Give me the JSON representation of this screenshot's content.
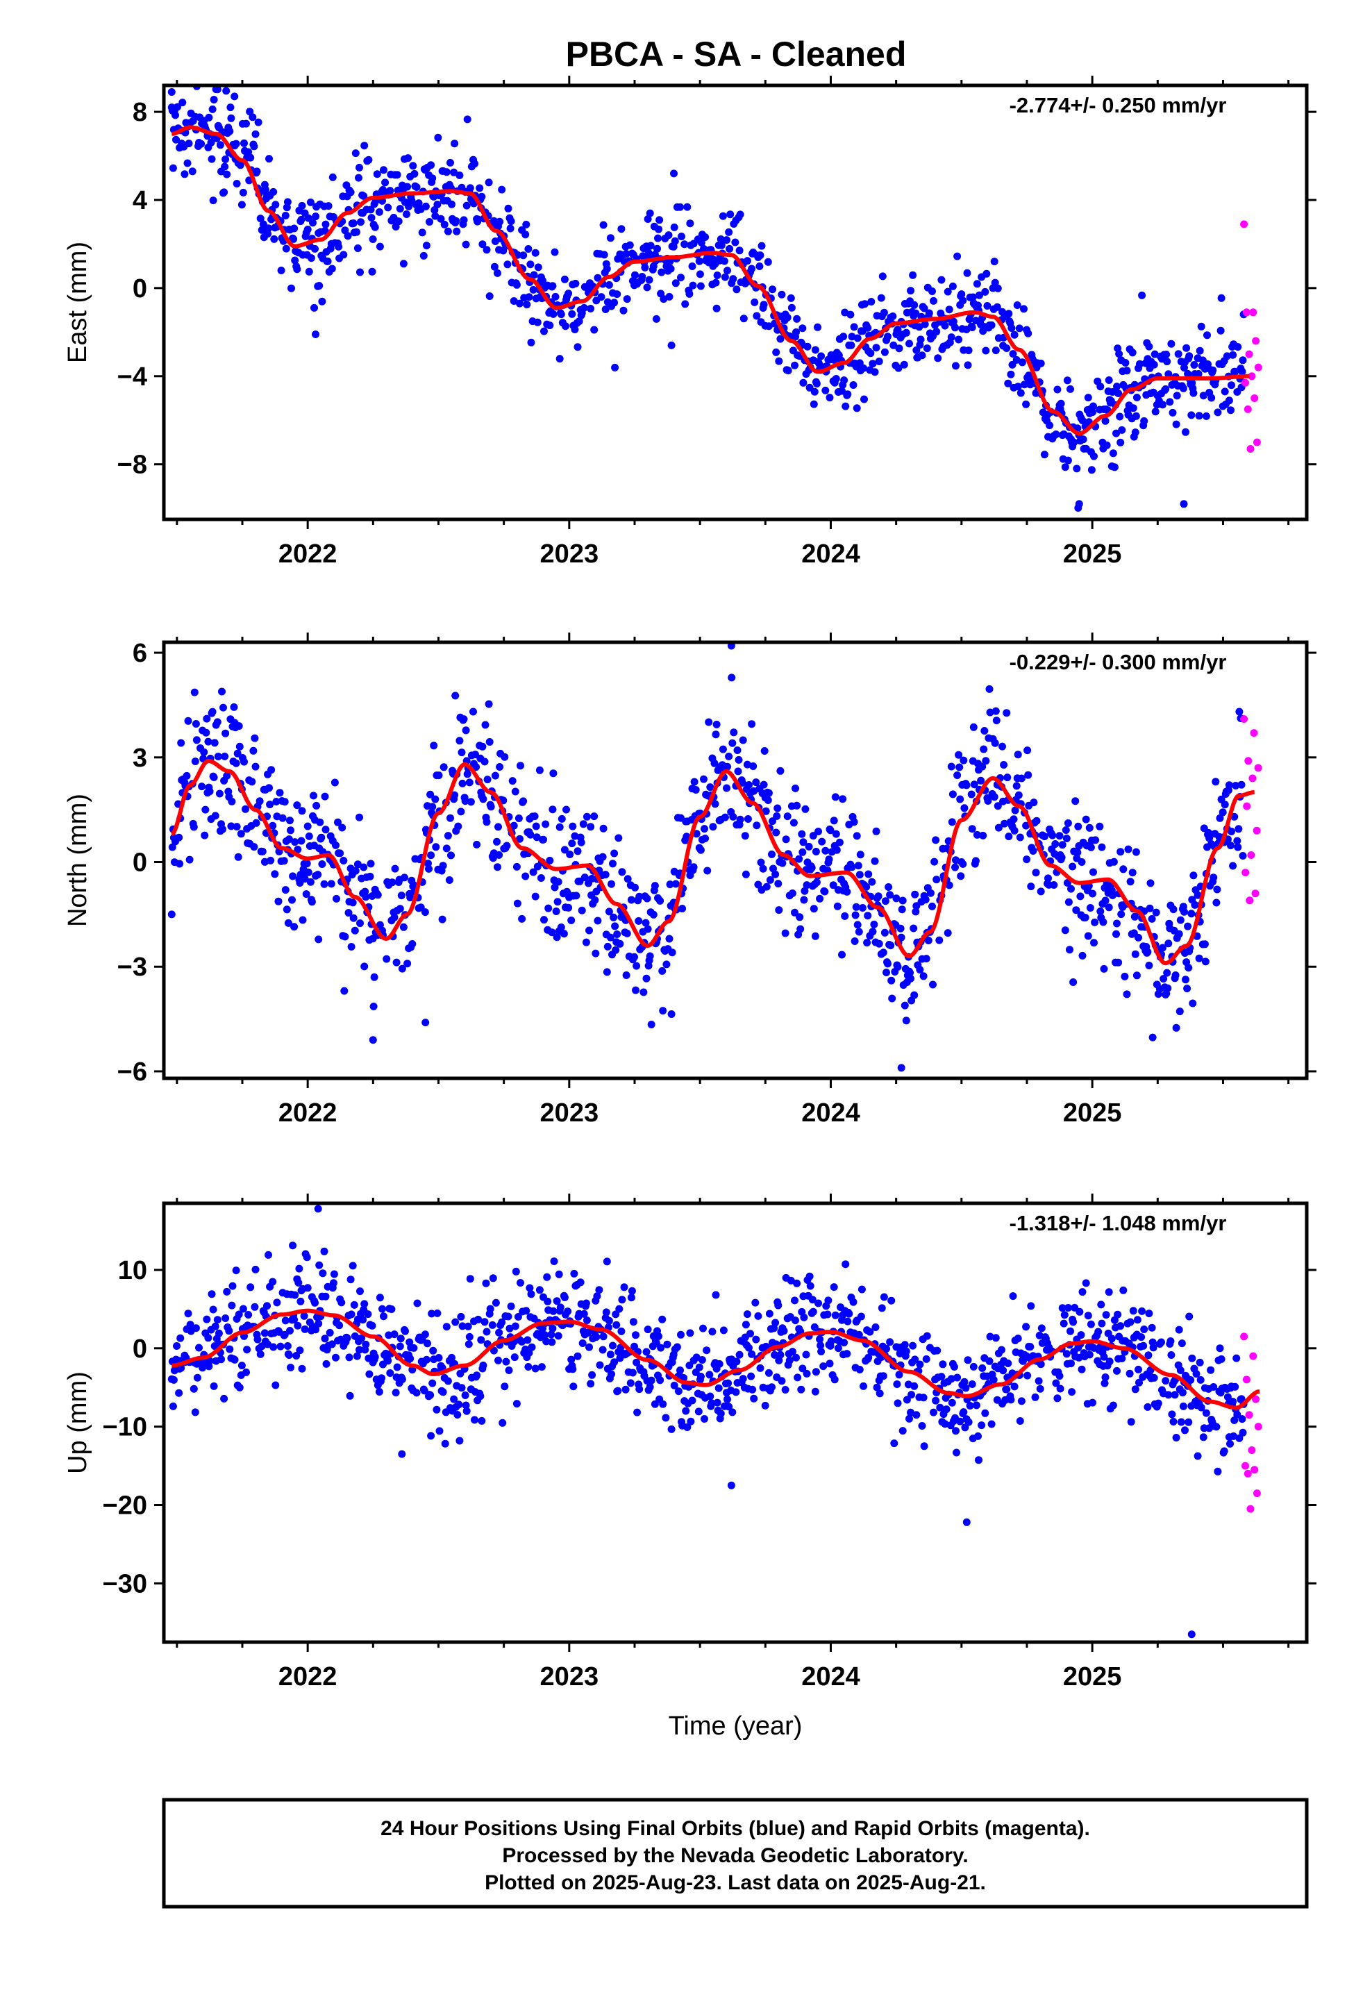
{
  "title": "PBCA  - SA - Cleaned",
  "footer": {
    "line1": "24 Hour Positions Using Final Orbits (blue) and Rapid Orbits (magenta).",
    "line2": "Processed by the Nevada Geodetic Laboratory.",
    "line3": "Plotted on 2025-Aug-23. Last data on 2025-Aug-21."
  },
  "colors": {
    "final": "#0000ff",
    "rapid": "#ff00ff",
    "model": "#ff0000",
    "frame": "#000000"
  },
  "chart_data": [
    {
      "type": "scatter",
      "component": "east",
      "ylabel": "East (mm)",
      "xlabel": "",
      "rate_label": "-2.774+/- 0.250 mm/yr",
      "xlim": [
        2021.45,
        2025.82
      ],
      "ylim": [
        -10.5,
        9.2
      ],
      "yticks": [
        8,
        4,
        0,
        -4,
        -8
      ],
      "ytick_labels": [
        "8",
        "4",
        "0",
        "−4",
        "−8"
      ],
      "xticks": [
        2022,
        2023,
        2024,
        2025
      ],
      "xtick_labels": [
        "2022",
        "2023",
        "2024",
        "2025"
      ],
      "grid": false,
      "model_knots": [
        [
          2021.48,
          7.0
        ],
        [
          2021.55,
          7.3
        ],
        [
          2021.65,
          7.0
        ],
        [
          2021.75,
          5.8
        ],
        [
          2021.85,
          3.5
        ],
        [
          2021.95,
          1.9
        ],
        [
          2022.05,
          2.2
        ],
        [
          2022.15,
          3.4
        ],
        [
          2022.25,
          4.1
        ],
        [
          2022.4,
          4.3
        ],
        [
          2022.55,
          4.4
        ],
        [
          2022.62,
          4.3
        ],
        [
          2022.72,
          2.6
        ],
        [
          2022.85,
          0.4
        ],
        [
          2022.95,
          -0.9
        ],
        [
          2023.05,
          -0.6
        ],
        [
          2023.15,
          0.5
        ],
        [
          2023.25,
          1.2
        ],
        [
          2023.4,
          1.4
        ],
        [
          2023.55,
          1.6
        ],
        [
          2023.62,
          1.5
        ],
        [
          2023.72,
          0.1
        ],
        [
          2023.85,
          -2.4
        ],
        [
          2023.95,
          -3.8
        ],
        [
          2024.05,
          -3.4
        ],
        [
          2024.15,
          -2.3
        ],
        [
          2024.25,
          -1.6
        ],
        [
          2024.4,
          -1.4
        ],
        [
          2024.55,
          -1.1
        ],
        [
          2024.62,
          -1.3
        ],
        [
          2024.72,
          -2.8
        ],
        [
          2024.85,
          -5.6
        ],
        [
          2024.95,
          -6.6
        ],
        [
          2025.05,
          -5.8
        ],
        [
          2025.15,
          -4.6
        ],
        [
          2025.25,
          -4.1
        ],
        [
          2025.45,
          -4.1
        ],
        [
          2025.6,
          -4.0
        ]
      ],
      "final_range": [
        2021.48,
        2025.58
      ],
      "rapid_range": [
        2025.58,
        2025.64
      ],
      "scatter_sd": 1.1,
      "rapid_values": [
        2.9,
        -1.1,
        -1.1,
        -2.4,
        -3.0,
        -3.6,
        -4.0,
        -4.3,
        -5.0,
        -5.5,
        -7.0,
        -7.3
      ],
      "outliers": [
        [
          2021.48,
          8.9
        ],
        [
          2021.72,
          8.7
        ],
        [
          2022.03,
          -2.1
        ],
        [
          2025.35,
          -9.8
        ],
        [
          2024.95,
          -9.8
        ],
        [
          2023.4,
          5.2
        ]
      ]
    },
    {
      "type": "scatter",
      "component": "north",
      "ylabel": "North (mm)",
      "xlabel": "",
      "rate_label": "-0.229+/- 0.300 mm/yr",
      "xlim": [
        2021.45,
        2025.82
      ],
      "ylim": [
        -6.2,
        6.3
      ],
      "yticks": [
        6,
        3,
        0,
        -3,
        -6
      ],
      "ytick_labels": [
        "6",
        "3",
        "0",
        "−3",
        "−6"
      ],
      "xticks": [
        2022,
        2023,
        2024,
        2025
      ],
      "xtick_labels": [
        "2022",
        "2023",
        "2024",
        "2025"
      ],
      "grid": false,
      "model_knots": [
        [
          2021.48,
          0.8
        ],
        [
          2021.55,
          2.2
        ],
        [
          2021.62,
          2.9
        ],
        [
          2021.7,
          2.6
        ],
        [
          2021.8,
          1.5
        ],
        [
          2021.9,
          0.4
        ],
        [
          2022.0,
          0.1
        ],
        [
          2022.08,
          0.2
        ],
        [
          2022.18,
          -1.0
        ],
        [
          2022.3,
          -2.2
        ],
        [
          2022.38,
          -1.5
        ],
        [
          2022.5,
          1.4
        ],
        [
          2022.6,
          2.8
        ],
        [
          2022.7,
          2.0
        ],
        [
          2022.82,
          0.4
        ],
        [
          2022.95,
          -0.2
        ],
        [
          2023.07,
          -0.1
        ],
        [
          2023.18,
          -1.2
        ],
        [
          2023.3,
          -2.4
        ],
        [
          2023.38,
          -1.7
        ],
        [
          2023.5,
          1.3
        ],
        [
          2023.6,
          2.6
        ],
        [
          2023.7,
          1.7
        ],
        [
          2023.82,
          0.2
        ],
        [
          2023.92,
          -0.4
        ],
        [
          2024.06,
          -0.3
        ],
        [
          2024.18,
          -1.3
        ],
        [
          2024.3,
          -2.7
        ],
        [
          2024.38,
          -2.0
        ],
        [
          2024.5,
          1.2
        ],
        [
          2024.62,
          2.4
        ],
        [
          2024.72,
          1.6
        ],
        [
          2024.84,
          -0.1
        ],
        [
          2024.95,
          -0.6
        ],
        [
          2025.06,
          -0.5
        ],
        [
          2025.17,
          -1.4
        ],
        [
          2025.28,
          -2.9
        ],
        [
          2025.36,
          -2.4
        ],
        [
          2025.48,
          0.4
        ],
        [
          2025.56,
          1.9
        ],
        [
          2025.62,
          2.0
        ]
      ],
      "final_range": [
        2021.48,
        2025.58
      ],
      "rapid_range": [
        2025.58,
        2025.64
      ],
      "scatter_sd": 1.05,
      "rapid_values": [
        4.1,
        3.7,
        2.9,
        2.7,
        2.4,
        1.6,
        0.9,
        0.2,
        -0.3,
        -0.9,
        -1.1
      ],
      "outliers": [
        [
          2023.62,
          6.2
        ],
        [
          2024.27,
          -5.9
        ],
        [
          2022.25,
          -5.1
        ],
        [
          2022.45,
          -4.6
        ],
        [
          2021.48,
          -1.5
        ]
      ]
    },
    {
      "type": "scatter",
      "component": "up",
      "ylabel": "Up (mm)",
      "xlabel": "Time (year)",
      "rate_label": "-1.318+/- 1.048 mm/yr",
      "xlim": [
        2021.45,
        2025.82
      ],
      "ylim": [
        -37.5,
        18.5
      ],
      "yticks": [
        10,
        0,
        -10,
        -20,
        -30
      ],
      "ytick_labels": [
        "10",
        "0",
        "−10",
        "−20",
        "−30"
      ],
      "xticks": [
        2022,
        2023,
        2024,
        2025
      ],
      "xtick_labels": [
        "2022",
        "2023",
        "2024",
        "2025"
      ],
      "grid": false,
      "model_knots": [
        [
          2021.48,
          -2.2
        ],
        [
          2021.6,
          -1.2
        ],
        [
          2021.75,
          2.0
        ],
        [
          2021.9,
          4.3
        ],
        [
          2022.0,
          4.8
        ],
        [
          2022.1,
          4.2
        ],
        [
          2022.25,
          1.5
        ],
        [
          2022.4,
          -2.2
        ],
        [
          2022.48,
          -3.3
        ],
        [
          2022.6,
          -2.2
        ],
        [
          2022.75,
          1.0
        ],
        [
          2022.9,
          3.2
        ],
        [
          2023.0,
          3.4
        ],
        [
          2023.12,
          2.4
        ],
        [
          2023.3,
          -1.5
        ],
        [
          2023.45,
          -4.4
        ],
        [
          2023.52,
          -4.7
        ],
        [
          2023.65,
          -2.8
        ],
        [
          2023.8,
          0.2
        ],
        [
          2023.92,
          1.9
        ],
        [
          2024.0,
          2.1
        ],
        [
          2024.12,
          1.0
        ],
        [
          2024.3,
          -3.0
        ],
        [
          2024.45,
          -5.7
        ],
        [
          2024.52,
          -6.1
        ],
        [
          2024.65,
          -4.6
        ],
        [
          2024.8,
          -1.4
        ],
        [
          2024.92,
          0.6
        ],
        [
          2025.0,
          0.9
        ],
        [
          2025.12,
          0.0
        ],
        [
          2025.3,
          -3.4
        ],
        [
          2025.45,
          -6.8
        ],
        [
          2025.55,
          -7.6
        ],
        [
          2025.64,
          -5.5
        ]
      ],
      "final_range": [
        2021.48,
        2025.58
      ],
      "rapid_range": [
        2025.58,
        2025.64
      ],
      "scatter_sd": 3.6,
      "rapid_values": [
        1.5,
        -1.0,
        -4.0,
        -6.5,
        -8.5,
        -10.0,
        -13.0,
        -15.0,
        -15.5,
        -16.0,
        -18.5,
        -20.5
      ],
      "outliers": [
        [
          2025.38,
          -36.5
        ],
        [
          2022.04,
          17.8
        ],
        [
          2024.52,
          -22.2
        ],
        [
          2023.62,
          -17.5
        ],
        [
          2022.36,
          -13.5
        ]
      ]
    }
  ]
}
